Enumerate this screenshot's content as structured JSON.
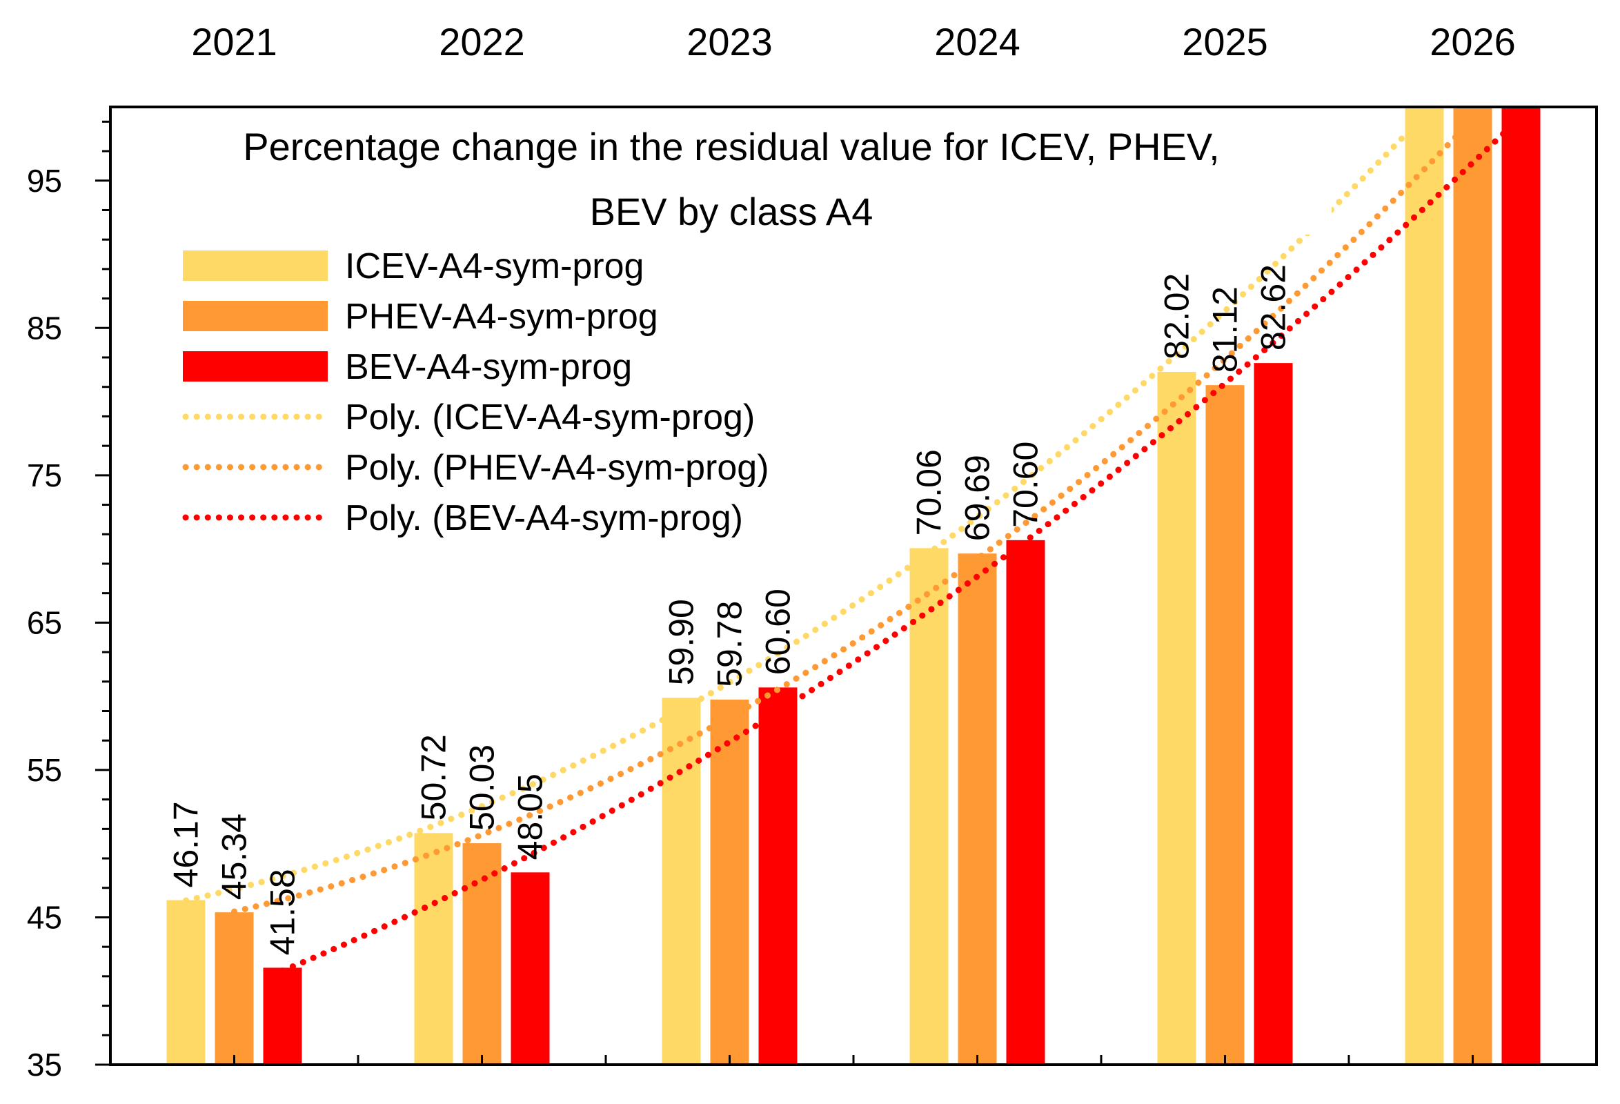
{
  "chart_data": {
    "type": "bar",
    "title": [
      "Percentage change in the residual value for ICEV, PHEV,",
      "BEV by class A4"
    ],
    "categories": [
      "2021",
      "2022",
      "2023",
      "2024",
      "2025",
      "2026"
    ],
    "ylim": [
      35,
      100
    ],
    "yticks": [
      "35",
      "45",
      "55",
      "65",
      "75",
      "85",
      "95"
    ],
    "xaxis_position": "top",
    "grid": false,
    "legend_position": "top-left",
    "series": [
      {
        "name": "ICEV-A4-sym-prog",
        "color": "#FFD966",
        "values": [
          46.17,
          50.72,
          59.9,
          70.06,
          82.02,
          100
        ],
        "labels": [
          "46.17",
          "50.72",
          "59.90",
          "70.06",
          "82.02",
          ""
        ]
      },
      {
        "name": "PHEV-A4-sym-prog",
        "color": "#FF9933",
        "values": [
          45.34,
          50.03,
          59.78,
          69.69,
          81.12,
          100
        ],
        "labels": [
          "45.34",
          "50.03",
          "59.78",
          "69.69",
          "81.12",
          ""
        ]
      },
      {
        "name": "BEV-A4-sym-prog",
        "color": "#FF0000",
        "values": [
          41.58,
          48.05,
          60.6,
          70.6,
          82.62,
          100
        ],
        "labels": [
          "41.58",
          "48.05",
          "60.60",
          "70.60",
          "82.62",
          ""
        ]
      }
    ],
    "trendlines": [
      {
        "name": "Poly. (ICEV-A4-sym-prog)",
        "color": "#FFD966",
        "series": 0,
        "style": "dotted"
      },
      {
        "name": "Poly. (PHEV-A4-sym-prog)",
        "color": "#FF9933",
        "series": 1,
        "style": "dotted"
      },
      {
        "name": "Poly. (BEV-A4-sym-prog)",
        "color": "#FF0000",
        "series": 2,
        "style": "dotted"
      }
    ]
  }
}
